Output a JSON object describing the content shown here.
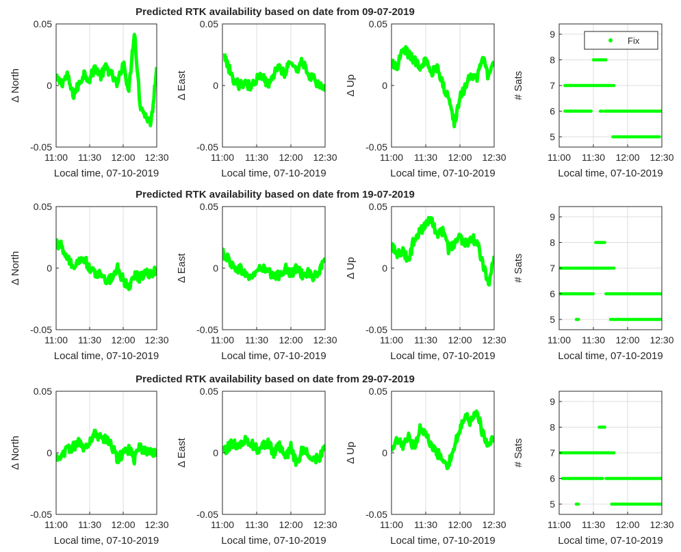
{
  "colors": {
    "fix": "#00ff00",
    "axis": "#262626",
    "grid": "#dcdcdc"
  },
  "chart_data": [
    {
      "title": "Predicted RTK availability based on date from 09-07-2019",
      "panels": [
        {
          "type": "line",
          "ylabel": "Δ North",
          "xlabel": "Local time, 07-10-2019",
          "ylim": [
            -0.05,
            0.05
          ],
          "yticks": [
            "0.05",
            "0",
            "-0.05"
          ],
          "xticks": [
            "11:00",
            "11:30",
            "12:00",
            "12:30"
          ],
          "grid": "x",
          "x": [
            0,
            5,
            10,
            15,
            20,
            25,
            30,
            35,
            40,
            45,
            50,
            55,
            60,
            65,
            70,
            75,
            80,
            85,
            90
          ],
          "y": [
            0.005,
            0.002,
            0.008,
            -0.008,
            0.0,
            0.01,
            0.005,
            0.015,
            0.008,
            0.015,
            0.008,
            0.0,
            0.02,
            -0.005,
            0.045,
            -0.015,
            -0.025,
            -0.03,
            0.015
          ]
        },
        {
          "type": "line",
          "ylabel": "Δ East",
          "xlabel": "Local time, 07-10-2019",
          "ylim": [
            -0.05,
            0.05
          ],
          "yticks": [
            "0.05",
            "0",
            "-0.05"
          ],
          "xticks": [
            "11:00",
            "11:30",
            "12:00",
            "12:30"
          ],
          "grid": "x",
          "x": [
            2,
            5,
            10,
            15,
            20,
            25,
            30,
            35,
            40,
            45,
            50,
            55,
            60,
            65,
            70,
            75,
            80,
            85,
            90
          ],
          "y": [
            0.025,
            0.015,
            0.005,
            0.0,
            0.003,
            -0.002,
            0.005,
            0.008,
            0.0,
            0.01,
            0.015,
            0.01,
            0.02,
            0.012,
            0.02,
            0.01,
            0.005,
            0.0,
            -0.005
          ]
        },
        {
          "type": "line",
          "ylabel": "Δ Up",
          "xlabel": "Local time, 07-10-2019",
          "ylim": [
            -0.05,
            0.05
          ],
          "yticks": [
            "0.05",
            "0",
            "-0.05"
          ],
          "xticks": [
            "11:00",
            "11:30",
            "12:00",
            "12:30"
          ],
          "grid": "x",
          "x": [
            0,
            5,
            10,
            15,
            20,
            25,
            30,
            35,
            40,
            45,
            50,
            55,
            60,
            65,
            70,
            75,
            80,
            85,
            90
          ],
          "y": [
            0.018,
            0.015,
            0.03,
            0.025,
            0.02,
            0.015,
            0.02,
            0.01,
            0.015,
            0.0,
            -0.01,
            -0.03,
            -0.01,
            0.0,
            0.01,
            0.005,
            0.025,
            0.005,
            0.02
          ]
        },
        {
          "type": "scatter",
          "ylabel": "# Sats",
          "xlabel": "Local time, 07-10-2019",
          "ylim": [
            4.6,
            9.4
          ],
          "yticks": [
            "9",
            "8",
            "7",
            "6",
            "5"
          ],
          "xticks": [
            "11:00",
            "11:30",
            "12:00",
            "12:30"
          ],
          "grid": "xy",
          "legend": {
            "label": "Fix",
            "position": "top-right"
          },
          "segments": [
            {
              "sats": 6,
              "from": 5,
              "to": 28
            },
            {
              "sats": 7,
              "from": 5,
              "to": 48
            },
            {
              "sats": 8,
              "from": 30,
              "to": 41
            },
            {
              "sats": 6,
              "from": 36,
              "to": 37
            },
            {
              "sats": 6,
              "from": 40,
              "to": 90
            },
            {
              "sats": 5,
              "from": 47,
              "to": 70
            },
            {
              "sats": 5,
              "from": 71,
              "to": 88
            }
          ]
        }
      ]
    },
    {
      "title": "Predicted RTK availability based on date from 19-07-2019",
      "panels": [
        {
          "type": "line",
          "ylabel": "Δ North",
          "xlabel": "Local time, 07-10-2019",
          "ylim": [
            -0.05,
            0.05
          ],
          "yticks": [
            "0.05",
            "0",
            "-0.05"
          ],
          "xticks": [
            "11:00",
            "11:30",
            "12:00",
            "12:30"
          ],
          "grid": "x",
          "x": [
            0,
            5,
            10,
            15,
            20,
            25,
            30,
            35,
            40,
            45,
            50,
            55,
            60,
            65,
            70,
            75,
            80,
            85,
            90
          ],
          "y": [
            0.02,
            0.018,
            0.008,
            0.0,
            0.005,
            0.008,
            0.0,
            -0.005,
            -0.003,
            -0.01,
            -0.008,
            0.0,
            -0.01,
            -0.015,
            -0.005,
            -0.008,
            -0.002,
            -0.005,
            0.0
          ]
        },
        {
          "type": "line",
          "ylabel": "Δ East",
          "xlabel": "Local time, 07-10-2019",
          "ylim": [
            -0.05,
            0.05
          ],
          "yticks": [
            "0.05",
            "0",
            "-0.05"
          ],
          "xticks": [
            "11:00",
            "11:30",
            "12:00",
            "12:30"
          ],
          "grid": "x",
          "x": [
            0,
            5,
            10,
            15,
            20,
            25,
            30,
            35,
            40,
            45,
            50,
            55,
            60,
            65,
            70,
            75,
            80,
            85,
            90
          ],
          "y": [
            0.012,
            0.008,
            0.0,
            0.0,
            -0.005,
            -0.008,
            -0.002,
            0.0,
            -0.003,
            -0.008,
            -0.005,
            0.0,
            -0.005,
            0.0,
            -0.005,
            -0.003,
            -0.008,
            -0.002,
            0.005
          ]
        },
        {
          "type": "line",
          "ylabel": "Δ Up",
          "xlabel": "Local time, 07-10-2019",
          "ylim": [
            -0.05,
            0.05
          ],
          "yticks": [
            "0.05",
            "0",
            "-0.05"
          ],
          "xticks": [
            "11:00",
            "11:30",
            "12:00",
            "12:30"
          ],
          "grid": "x",
          "x": [
            0,
            5,
            10,
            15,
            20,
            25,
            30,
            35,
            40,
            45,
            50,
            55,
            60,
            65,
            70,
            75,
            80,
            85,
            90
          ],
          "y": [
            0.02,
            0.01,
            0.015,
            0.005,
            0.025,
            0.03,
            0.035,
            0.04,
            0.025,
            0.03,
            0.015,
            0.02,
            0.025,
            0.02,
            0.025,
            0.02,
            0.005,
            -0.015,
            0.01
          ]
        },
        {
          "type": "scatter",
          "ylabel": "# Sats",
          "xlabel": "Local time, 07-10-2019",
          "ylim": [
            4.6,
            9.4
          ],
          "yticks": [
            "9",
            "8",
            "7",
            "6",
            "5"
          ],
          "xticks": [
            "11:00",
            "11:30",
            "12:00",
            "12:30"
          ],
          "grid": "xy",
          "segments": [
            {
              "sats": 7,
              "from": 0,
              "to": 48
            },
            {
              "sats": 6,
              "from": 0,
              "to": 30
            },
            {
              "sats": 5,
              "from": 15,
              "to": 17
            },
            {
              "sats": 8,
              "from": 32,
              "to": 40
            },
            {
              "sats": 6,
              "from": 41,
              "to": 90
            },
            {
              "sats": 5,
              "from": 45,
              "to": 90
            }
          ]
        }
      ]
    },
    {
      "title": "Predicted RTK availability based on date from 29-07-2019",
      "panels": [
        {
          "type": "line",
          "ylabel": "Δ North",
          "xlabel": "Local time, 07-10-2019",
          "ylim": [
            -0.05,
            0.05
          ],
          "yticks": [
            "0.05",
            "0",
            "-0.05"
          ],
          "xticks": [
            "11:00",
            "11:30",
            "12:00",
            "12:30"
          ],
          "grid": "x",
          "x": [
            0,
            5,
            10,
            15,
            20,
            25,
            30,
            35,
            40,
            45,
            50,
            55,
            60,
            65,
            70,
            75,
            80,
            85,
            90
          ],
          "y": [
            -0.005,
            0.0,
            0.002,
            0.005,
            0.008,
            0.005,
            0.01,
            0.015,
            0.012,
            0.01,
            0.005,
            -0.005,
            0.0,
            0.003,
            -0.005,
            0.005,
            0.0,
            0.003,
            -0.003
          ]
        },
        {
          "type": "line",
          "ylabel": "Δ East",
          "xlabel": "Local time, 07-10-2019",
          "ylim": [
            -0.05,
            0.05
          ],
          "yticks": [
            "0.05",
            "0",
            "-0.05"
          ],
          "xticks": [
            "11:00",
            "11:30",
            "12:00",
            "12:30"
          ],
          "grid": "x",
          "x": [
            0,
            5,
            10,
            15,
            20,
            25,
            30,
            35,
            40,
            45,
            50,
            55,
            60,
            65,
            70,
            75,
            80,
            85,
            90
          ],
          "y": [
            0.0,
            0.005,
            0.008,
            0.005,
            0.01,
            0.008,
            0.003,
            0.005,
            0.008,
            0.0,
            0.005,
            -0.005,
            0.005,
            -0.01,
            0.003,
            0.0,
            -0.005,
            -0.003,
            0.003
          ]
        },
        {
          "type": "line",
          "ylabel": "Δ Up",
          "xlabel": "Local time, 07-10-2019",
          "ylim": [
            -0.05,
            0.05
          ],
          "yticks": [
            "0.05",
            "0",
            "-0.05"
          ],
          "xticks": [
            "11:00",
            "11:30",
            "12:00",
            "12:30"
          ],
          "grid": "x",
          "x": [
            0,
            5,
            10,
            15,
            20,
            25,
            30,
            35,
            40,
            45,
            50,
            55,
            60,
            65,
            70,
            75,
            80,
            85,
            90
          ],
          "y": [
            0.0,
            0.01,
            0.005,
            0.012,
            0.005,
            0.02,
            0.015,
            0.005,
            0.0,
            -0.005,
            -0.01,
            0.005,
            0.02,
            0.03,
            0.025,
            0.035,
            0.015,
            0.005,
            0.012
          ]
        },
        {
          "type": "scatter",
          "ylabel": "# Sats",
          "xlabel": "Local time, 07-10-2019",
          "ylim": [
            4.6,
            9.4
          ],
          "yticks": [
            "9",
            "8",
            "7",
            "6",
            "5"
          ],
          "xticks": [
            "11:00",
            "11:30",
            "12:00",
            "12:30"
          ],
          "grid": "xy",
          "segments": [
            {
              "sats": 7,
              "from": 0,
              "to": 48
            },
            {
              "sats": 6,
              "from": 3,
              "to": 38
            },
            {
              "sats": 5,
              "from": 15,
              "to": 17
            },
            {
              "sats": 8,
              "from": 35,
              "to": 40
            },
            {
              "sats": 6,
              "from": 41,
              "to": 90
            },
            {
              "sats": 5,
              "from": 46,
              "to": 90
            }
          ]
        }
      ]
    }
  ]
}
